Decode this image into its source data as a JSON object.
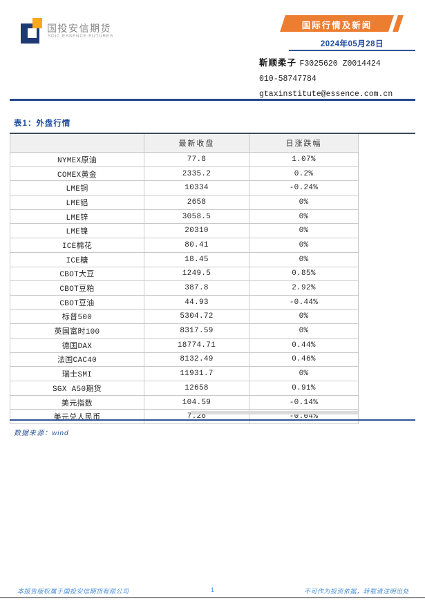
{
  "logo": {
    "cn": "国投安信期货",
    "en": "SDIC ESSENCE FUTURES"
  },
  "header": {
    "banner_label": "国际行情及新闻",
    "date": "2024年05月28日",
    "analyst_name": "靳顺柔子",
    "analyst_codes": "F3025620 Z0014424",
    "phone": "010-58747784",
    "email": "gtaxinstitute@essence.com.cn"
  },
  "table": {
    "title": "表1：外盘行情",
    "col_name": "",
    "col_close": "最新收盘",
    "col_change": "日涨跌幅",
    "rows": [
      [
        "NYMEX原油",
        "77.8",
        "1.07%"
      ],
      [
        "COMEX黄金",
        "2335.2",
        "0.2%"
      ],
      [
        "LME铜",
        "10334",
        "-0.24%"
      ],
      [
        "LME铝",
        "2658",
        "0%"
      ],
      [
        "LME锌",
        "3058.5",
        "0%"
      ],
      [
        "LME镍",
        "20310",
        "0%"
      ],
      [
        "ICE棉花",
        "80.41",
        "0%"
      ],
      [
        "ICE糖",
        "18.45",
        "0%"
      ],
      [
        "CBOT大豆",
        "1249.5",
        "0.85%"
      ],
      [
        "CBOT豆粕",
        "387.8",
        "2.92%"
      ],
      [
        "CBOT豆油",
        "44.93",
        "-0.44%"
      ],
      [
        "标普500",
        "5304.72",
        "0%"
      ],
      [
        "英国富时100",
        "8317.59",
        "0%"
      ],
      [
        "德国DAX",
        "18774.71",
        "0.44%"
      ],
      [
        "法国CAC40",
        "8132.49",
        "0.46%"
      ],
      [
        "瑞士SMI",
        "11931.7",
        "0%"
      ],
      [
        "SGX A50期货",
        "12658",
        "0.91%"
      ],
      [
        "美元指数",
        "104.59",
        "-0.14%"
      ],
      [
        "美元兑人民币",
        "7.26",
        "-0.04%"
      ]
    ],
    "source": "数据来源：wind"
  },
  "footer": {
    "left": "本报告版权属于国投安信期货有限公司",
    "page_number": "1",
    "right": "不可作为投资依据，转载请注明出处"
  },
  "colors": {
    "banner_orange": "#ED7D31",
    "logo_orange": "#F7A81E",
    "logo_blue": "#1E3A74",
    "accent_blue": "#1D4BA0",
    "rule_navy": "#2F5496",
    "footer_blue": "#4A90D9"
  }
}
